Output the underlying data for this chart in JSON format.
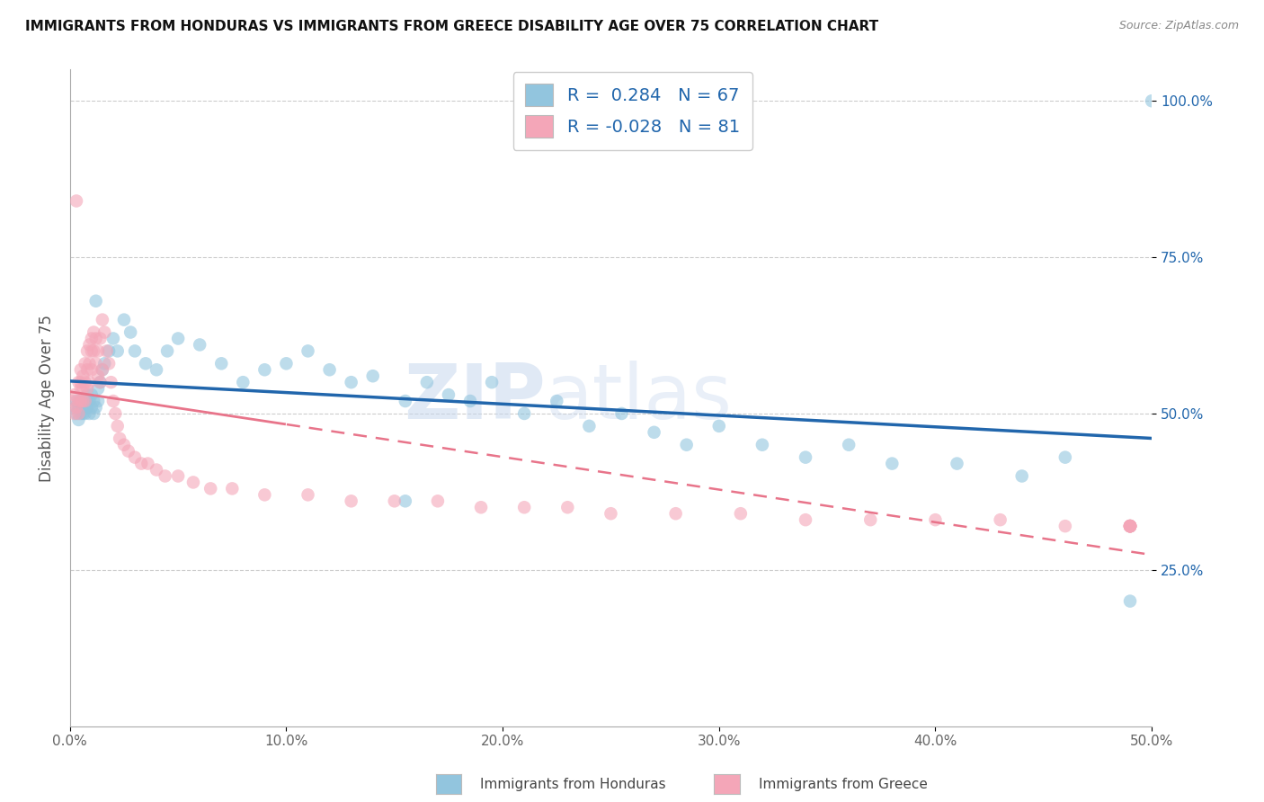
{
  "title": "IMMIGRANTS FROM HONDURAS VS IMMIGRANTS FROM GREECE DISABILITY AGE OVER 75 CORRELATION CHART",
  "source": "Source: ZipAtlas.com",
  "ylabel": "Disability Age Over 75",
  "xlabel_honduras": "Immigrants from Honduras",
  "xlabel_greece": "Immigrants from Greece",
  "xlim": [
    0.0,
    0.5
  ],
  "ylim": [
    0.0,
    1.05
  ],
  "xtick_vals": [
    0.0,
    0.1,
    0.2,
    0.3,
    0.4,
    0.5
  ],
  "xtick_labels": [
    "0.0%",
    "10.0%",
    "20.0%",
    "30.0%",
    "40.0%",
    "50.0%"
  ],
  "ytick_vals": [
    0.25,
    0.5,
    0.75,
    1.0
  ],
  "ytick_labels": [
    "25.0%",
    "50.0%",
    "75.0%",
    "100.0%"
  ],
  "honduras_color": "#92c5de",
  "greece_color": "#f4a6b8",
  "honduras_R": 0.284,
  "honduras_N": 67,
  "greece_R": -0.028,
  "greece_N": 81,
  "trend_blue": "#2166ac",
  "trend_pink": "#e8748a",
  "watermark_zip": "ZIP",
  "watermark_atlas": "atlas",
  "honduras_x": [
    0.002,
    0.003,
    0.003,
    0.004,
    0.004,
    0.005,
    0.005,
    0.006,
    0.006,
    0.007,
    0.007,
    0.008,
    0.008,
    0.009,
    0.009,
    0.01,
    0.01,
    0.011,
    0.011,
    0.012,
    0.012,
    0.013,
    0.013,
    0.014,
    0.015,
    0.016,
    0.018,
    0.02,
    0.022,
    0.025,
    0.028,
    0.03,
    0.035,
    0.04,
    0.045,
    0.05,
    0.06,
    0.07,
    0.08,
    0.09,
    0.1,
    0.11,
    0.12,
    0.13,
    0.14,
    0.155,
    0.165,
    0.175,
    0.185,
    0.195,
    0.21,
    0.225,
    0.24,
    0.255,
    0.27,
    0.285,
    0.3,
    0.32,
    0.34,
    0.36,
    0.38,
    0.41,
    0.44,
    0.46,
    0.155,
    0.49,
    0.5
  ],
  "honduras_y": [
    0.51,
    0.5,
    0.52,
    0.49,
    0.51,
    0.5,
    0.52,
    0.51,
    0.5,
    0.52,
    0.5,
    0.51,
    0.53,
    0.5,
    0.52,
    0.51,
    0.53,
    0.52,
    0.5,
    0.51,
    0.68,
    0.52,
    0.54,
    0.55,
    0.57,
    0.58,
    0.6,
    0.62,
    0.6,
    0.65,
    0.63,
    0.6,
    0.58,
    0.57,
    0.6,
    0.62,
    0.61,
    0.58,
    0.55,
    0.57,
    0.58,
    0.6,
    0.57,
    0.55,
    0.56,
    0.52,
    0.55,
    0.53,
    0.52,
    0.55,
    0.5,
    0.52,
    0.48,
    0.5,
    0.47,
    0.45,
    0.48,
    0.45,
    0.43,
    0.45,
    0.42,
    0.42,
    0.4,
    0.43,
    0.36,
    0.2,
    1.0
  ],
  "greece_x": [
    0.001,
    0.002,
    0.002,
    0.003,
    0.003,
    0.004,
    0.004,
    0.004,
    0.005,
    0.005,
    0.005,
    0.005,
    0.006,
    0.006,
    0.006,
    0.007,
    0.007,
    0.007,
    0.008,
    0.008,
    0.008,
    0.009,
    0.009,
    0.009,
    0.01,
    0.01,
    0.01,
    0.011,
    0.011,
    0.012,
    0.012,
    0.013,
    0.013,
    0.014,
    0.014,
    0.015,
    0.015,
    0.016,
    0.017,
    0.018,
    0.019,
    0.02,
    0.021,
    0.022,
    0.023,
    0.025,
    0.027,
    0.03,
    0.033,
    0.036,
    0.04,
    0.044,
    0.05,
    0.057,
    0.065,
    0.075,
    0.09,
    0.11,
    0.13,
    0.15,
    0.17,
    0.19,
    0.21,
    0.23,
    0.25,
    0.28,
    0.31,
    0.34,
    0.37,
    0.4,
    0.43,
    0.46,
    0.49,
    0.49,
    0.49,
    0.49,
    0.49,
    0.49,
    0.49,
    0.49,
    0.49
  ],
  "greece_y": [
    0.52,
    0.5,
    0.53,
    0.84,
    0.51,
    0.55,
    0.52,
    0.5,
    0.57,
    0.55,
    0.54,
    0.52,
    0.56,
    0.54,
    0.52,
    0.58,
    0.55,
    0.52,
    0.6,
    0.57,
    0.54,
    0.61,
    0.58,
    0.55,
    0.62,
    0.6,
    0.57,
    0.63,
    0.6,
    0.62,
    0.58,
    0.6,
    0.56,
    0.62,
    0.55,
    0.65,
    0.57,
    0.63,
    0.6,
    0.58,
    0.55,
    0.52,
    0.5,
    0.48,
    0.46,
    0.45,
    0.44,
    0.43,
    0.42,
    0.42,
    0.41,
    0.4,
    0.4,
    0.39,
    0.38,
    0.38,
    0.37,
    0.37,
    0.36,
    0.36,
    0.36,
    0.35,
    0.35,
    0.35,
    0.34,
    0.34,
    0.34,
    0.33,
    0.33,
    0.33,
    0.33,
    0.32,
    0.32,
    0.32,
    0.32,
    0.32,
    0.32,
    0.32,
    0.32,
    0.32,
    0.32
  ]
}
